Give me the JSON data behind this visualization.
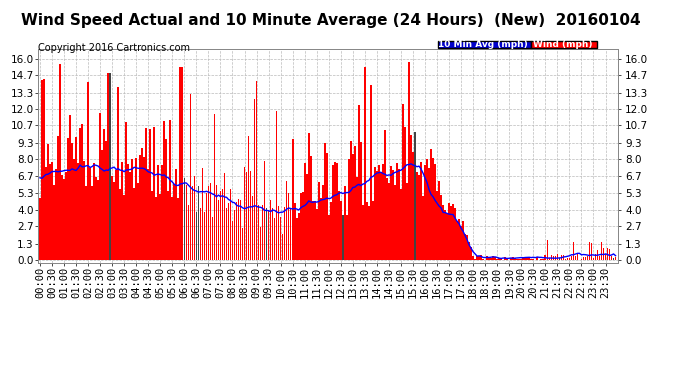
{
  "title": "Wind Speed Actual and 10 Minute Average (24 Hours)  (New)  20160104",
  "copyright": "Copyright 2016 Cartronics.com",
  "legend_blue_label": "10 Min Avg (mph)",
  "legend_red_label": "Wind (mph)",
  "yticks": [
    0.0,
    1.3,
    2.7,
    4.0,
    5.3,
    6.7,
    8.0,
    9.3,
    10.7,
    12.0,
    13.3,
    14.7,
    16.0
  ],
  "ymax": 16.8,
  "ymin": -0.2,
  "background_color": "#ffffff",
  "grid_color": "#bbbbbb",
  "bar_color_red": "#ff0000",
  "bar_color_dark": "#444444",
  "line_color_blue": "#0000ff",
  "legend_blue_bg": "#0000cc",
  "legend_red_bg": "#ff0000",
  "title_fontsize": 11,
  "copyright_fontsize": 7,
  "tick_fontsize": 7.5,
  "n_points": 288,
  "tick_step": 6
}
